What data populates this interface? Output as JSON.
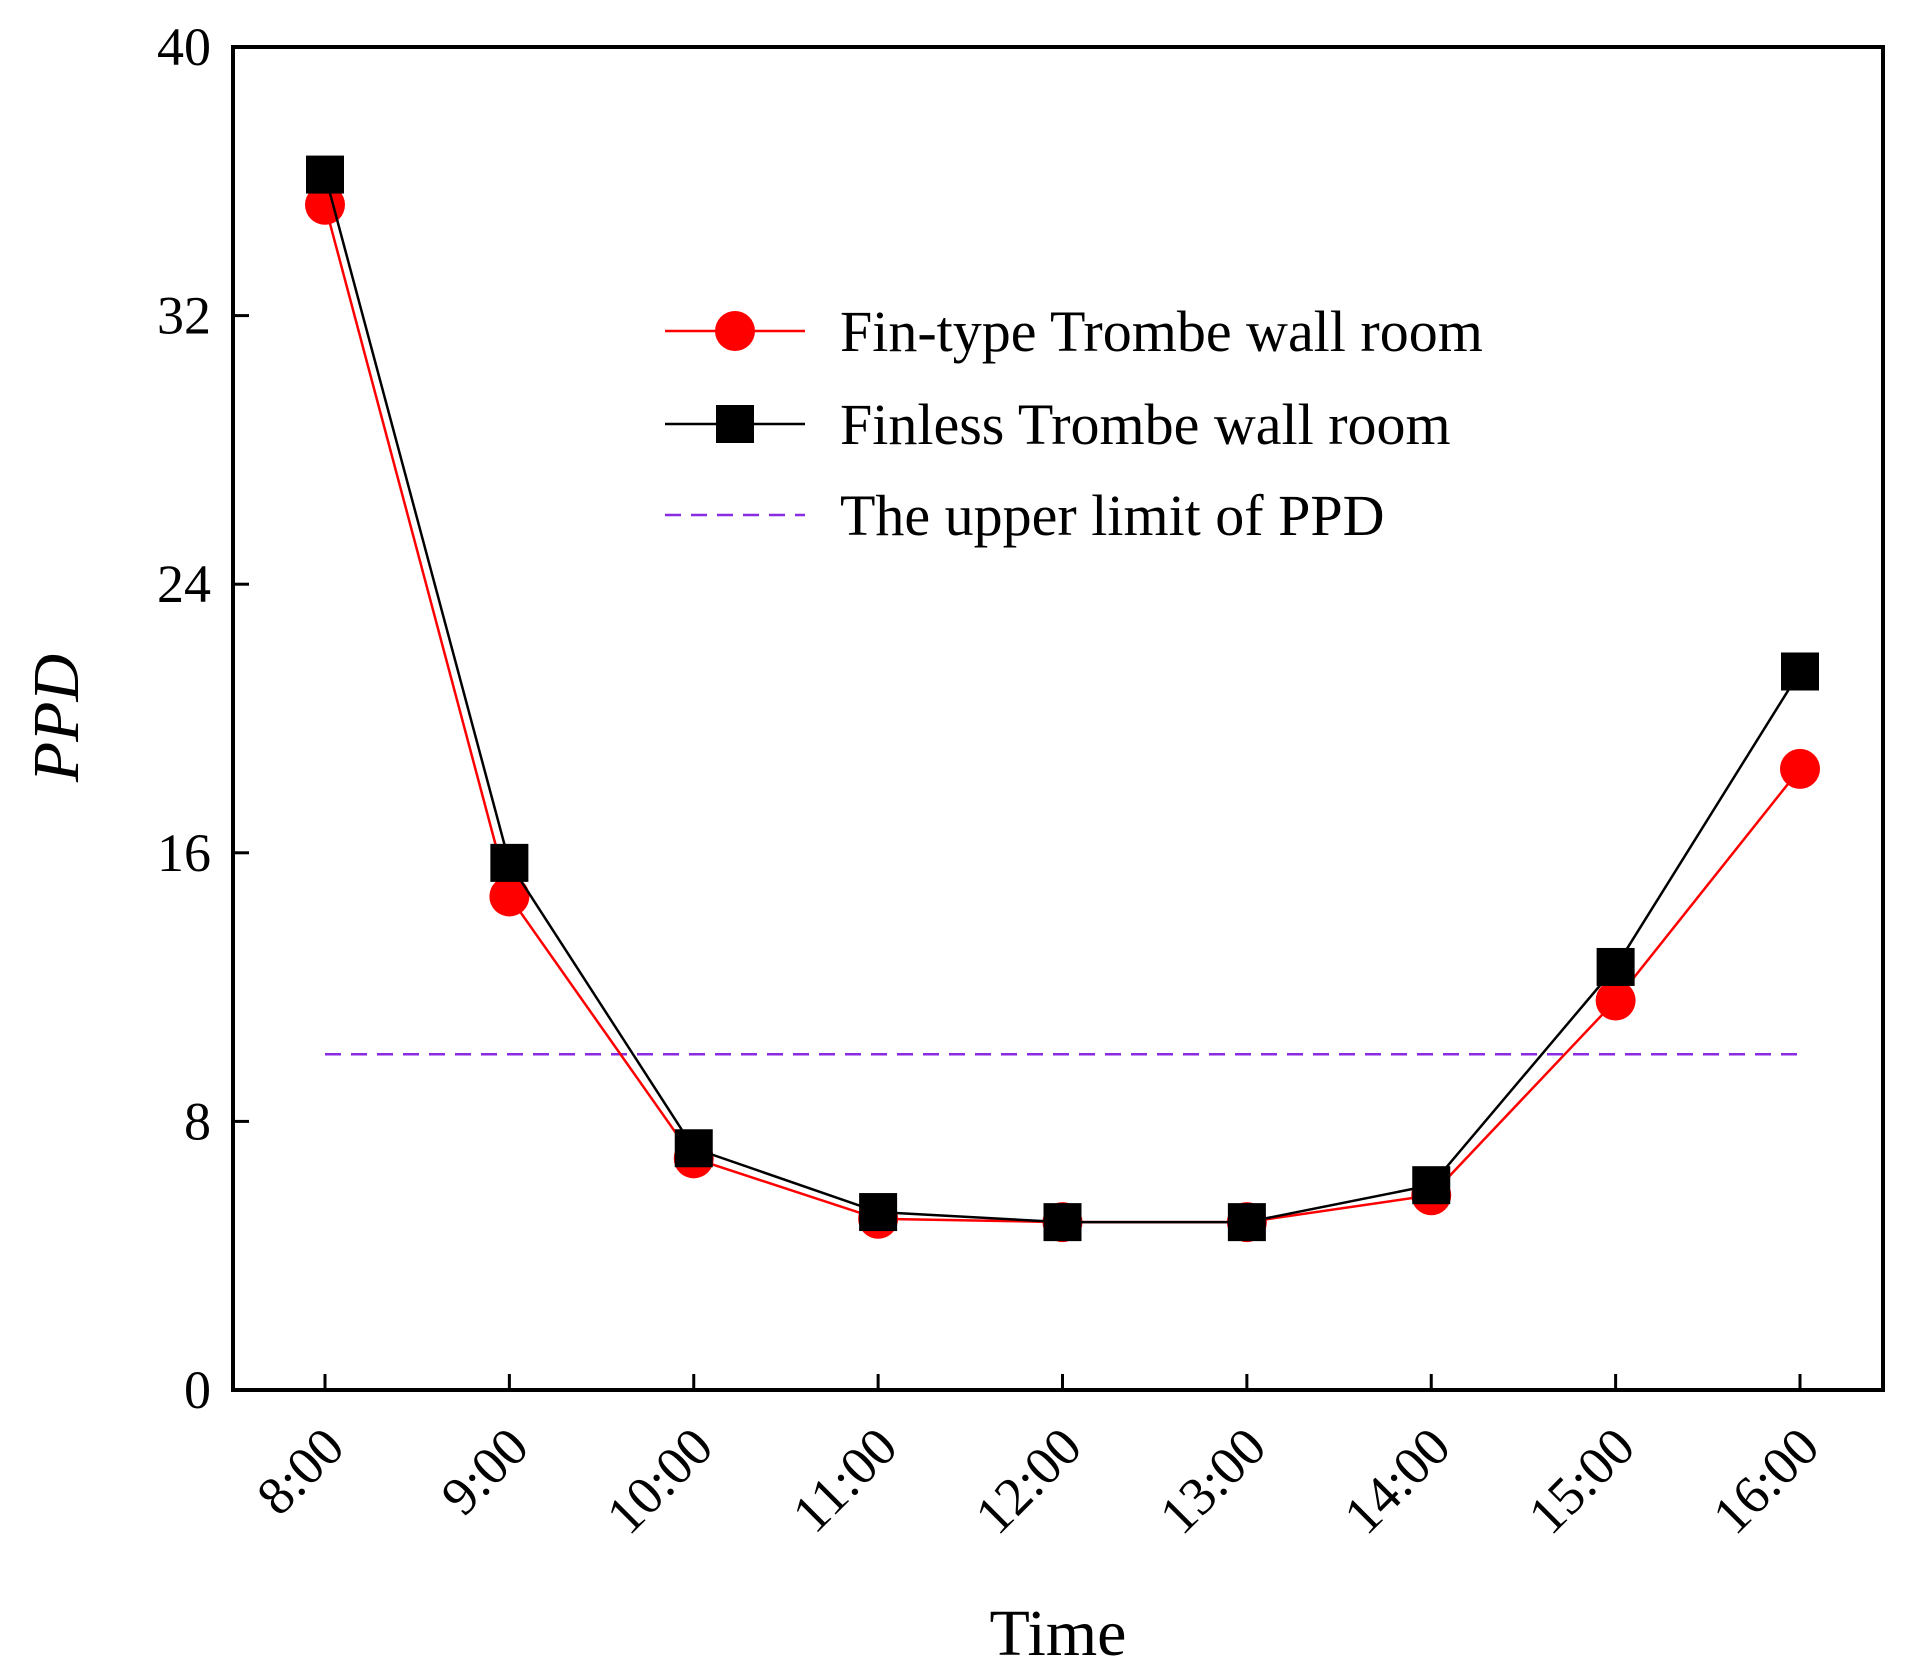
{
  "chart_data": {
    "type": "line",
    "title": "",
    "xlabel": "Time",
    "ylabel": "PPD",
    "categories": [
      "8:00",
      "9:00",
      "10:00",
      "11:00",
      "12:00",
      "13:00",
      "14:00",
      "15:00",
      "16:00"
    ],
    "ylim": [
      0,
      40
    ],
    "yticks": [
      0,
      8,
      16,
      24,
      32,
      40
    ],
    "grid": false,
    "legend_position": "top-right",
    "series": [
      {
        "name": "Fin-type Trombe wall room",
        "values": [
          35.3,
          14.7,
          6.9,
          5.1,
          5.0,
          5.0,
          5.8,
          11.6,
          18.5
        ],
        "color": "#ff0000",
        "marker": "circle"
      },
      {
        "name": "Finless Trombe wall room",
        "values": [
          36.2,
          15.7,
          7.2,
          5.3,
          5.0,
          5.0,
          6.1,
          12.6,
          21.4
        ],
        "color": "#000000",
        "marker": "square"
      }
    ],
    "reference_line": {
      "name": "The upper limit of PPD",
      "value": 10,
      "color": "#8a2be2",
      "style": "dashed"
    }
  }
}
